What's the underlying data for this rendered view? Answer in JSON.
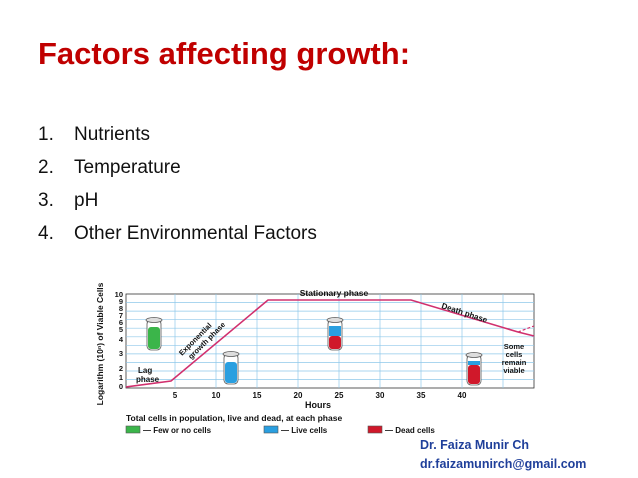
{
  "slide": {
    "title": "Factors affecting growth:",
    "items": [
      {
        "num": "1.",
        "text": "Nutrients"
      },
      {
        "num": "2.",
        "text": "Temperature"
      },
      {
        "num": "3.",
        "text": "pH"
      },
      {
        "num": "4.",
        "text": "Other Environmental Factors"
      }
    ],
    "author_name": "Dr. Faiza Munir Ch",
    "author_email": "dr.faizamunirch@gmail.com"
  },
  "figure": {
    "ylabel": "Logarithm (10ⁿ) of Viable Cells",
    "xlabel": "Hours",
    "xticks": [
      "5",
      "10",
      "15",
      "20",
      "25",
      "30",
      "35",
      "40"
    ],
    "yticks": [
      "0",
      "1",
      "2",
      "3",
      "4",
      "5",
      "6",
      "7",
      "8",
      "9",
      "10"
    ],
    "phases": {
      "lag": [
        "Lag",
        "phase"
      ],
      "exponential": [
        "Exponential",
        "growth phase"
      ],
      "stationary": "Stationary phase",
      "death": "Death phase",
      "remain": [
        "Some",
        "cells",
        "remain",
        "viable"
      ]
    },
    "legend": {
      "caption": "Total cells in population, live and dead, at each phase",
      "few": "— Few or no cells",
      "live": "— Live cells",
      "dead": "— Dead cells"
    },
    "colors": {
      "few": "#3bb54a",
      "live": "#2a9fe0",
      "dead": "#d0182a",
      "curve": "#d1306e",
      "grid": "#8fc8ea"
    }
  }
}
